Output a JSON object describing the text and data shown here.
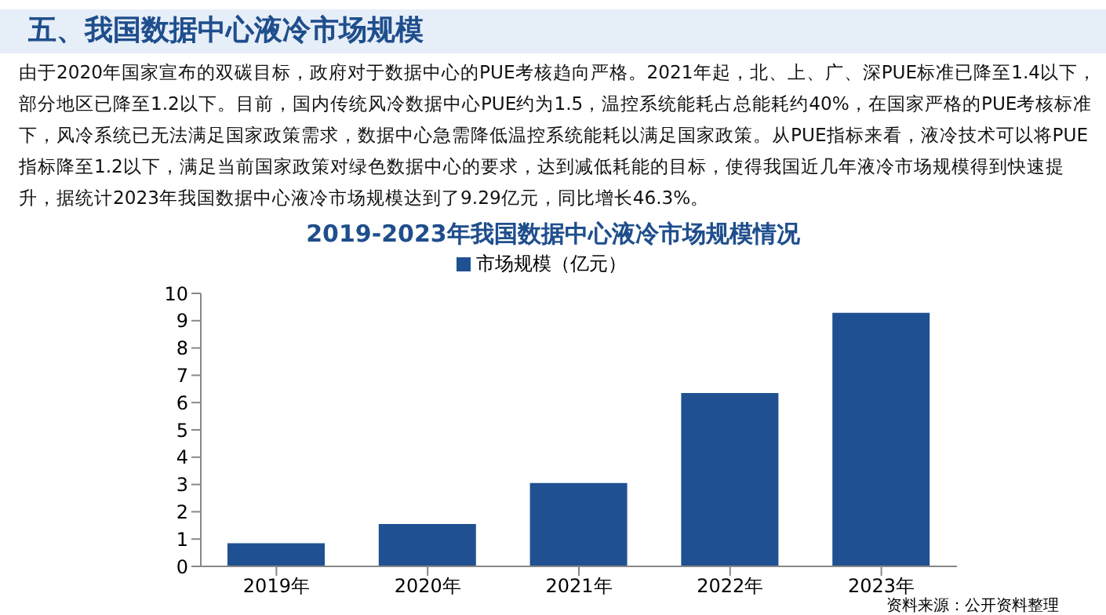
{
  "chart_data": {
    "type": "bar",
    "title": "2019-2023年我国数据中心液冷市场规模情况",
    "annotations": [
      "五、我国数据中心液冷市场规模",
      "由于2020年国家宣布的双碳目标，政府对于数据中心的PUE考核趋向严格。2021年起，北、上、广、深PUE标准已降至1.4以下，部分地区已降至1.2以下。目前，国内传统风冷数据中心PUE约为1.5，温控系统能耗占总能耗约40%，在国家严格的PUE考核标准下，风冷系统已无法满足国家政策需求，数据中心急需降低温控系统能耗以满足国家政策。从PUE指标来看，液冷技术可以将PUE指标降至1.2以下，满足当前国家政策对绿色数据中心的要求，达到减低耗能的目标，使得我国近几年液冷市场规模得到快速提升，据统计2023年我国数据中心液冷市场规模达到了9.29亿元，同比增长46.3%。",
      "资料来源：公开资料整理"
    ],
    "categories": [
      "2019年",
      "2020年",
      "2021年",
      "2022年",
      "2023年"
    ],
    "series": [
      {
        "name": "市场规模（亿元）",
        "color": "#1f5192",
        "values": [
          0.85,
          1.55,
          3.05,
          6.35,
          9.29
        ]
      }
    ],
    "ylim": [
      0,
      10
    ],
    "yticks": [
      0,
      1,
      2,
      3,
      4,
      5,
      6,
      7,
      8,
      9,
      10
    ],
    "grid": false,
    "legend": "top"
  }
}
